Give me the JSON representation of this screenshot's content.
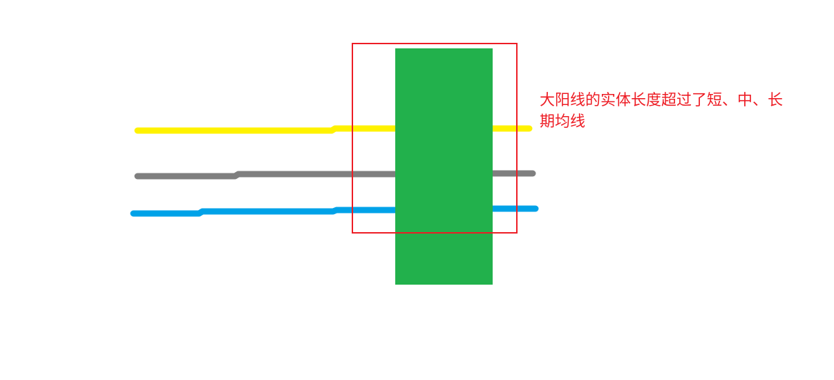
{
  "colors": {
    "background": "#ffffff",
    "candle_body": "#22b14c",
    "short_ma": "#fff200",
    "mid_ma": "#7f7f7f",
    "long_ma": "#00a2e8",
    "highlight_box": "#ed1c24",
    "annotation_text": "#ed1c24"
  },
  "diagram": {
    "candle": "big-bullish-candle",
    "moving_averages": [
      {
        "role": "short",
        "color": "#fff200"
      },
      {
        "role": "mid",
        "color": "#7f7f7f"
      },
      {
        "role": "long",
        "color": "#00a2e8"
      }
    ]
  },
  "annotation": {
    "line1": "大阳线的实体长度超过了短、中、长",
    "line2": "期均线"
  }
}
